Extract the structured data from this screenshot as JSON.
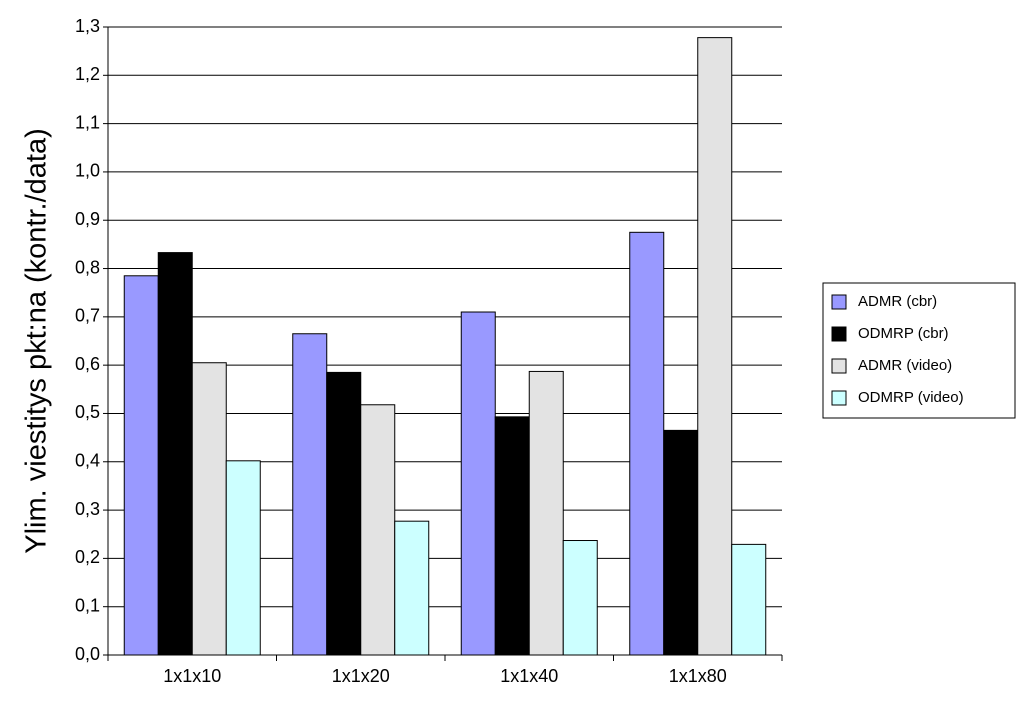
{
  "chart_data": {
    "type": "bar",
    "y_label": "Ylim. viestitys pkt:na (kontr./data)",
    "categories": [
      "1x1x10",
      "1x1x20",
      "1x1x40",
      "1x1x80"
    ],
    "series": [
      {
        "name": "ADMR (cbr)",
        "color": "#9999ff",
        "values": [
          0.785,
          0.665,
          0.71,
          0.875
        ]
      },
      {
        "name": "ODMRP (cbr)",
        "color": "#000000",
        "values": [
          0.833,
          0.585,
          0.493,
          0.465
        ]
      },
      {
        "name": "ADMR (video)",
        "color": "#e3e3e3",
        "values": [
          0.605,
          0.518,
          0.587,
          1.278
        ]
      },
      {
        "name": "ODMRP (video)",
        "color": "#ccffff",
        "values": [
          0.402,
          0.277,
          0.237,
          0.229
        ]
      }
    ],
    "ylim": [
      0,
      1.3
    ],
    "yticks": [
      {
        "value": 0,
        "label": "0,0"
      },
      {
        "value": 0.1,
        "label": "0,1"
      },
      {
        "value": 0.2,
        "label": "0,2"
      },
      {
        "value": 0.3,
        "label": "0,3"
      },
      {
        "value": 0.4,
        "label": "0,4"
      },
      {
        "value": 0.5,
        "label": "0,5"
      },
      {
        "value": 0.6,
        "label": "0,6"
      },
      {
        "value": 0.7,
        "label": "0,7"
      },
      {
        "value": 0.8,
        "label": "0,8"
      },
      {
        "value": 0.9,
        "label": "0,9"
      },
      {
        "value": 1.0,
        "label": "1,0"
      },
      {
        "value": 1.1,
        "label": "1,1"
      },
      {
        "value": 1.2,
        "label": "1,2"
      },
      {
        "value": 1.3,
        "label": "1,3"
      }
    ],
    "grid": true,
    "legend": "right"
  }
}
